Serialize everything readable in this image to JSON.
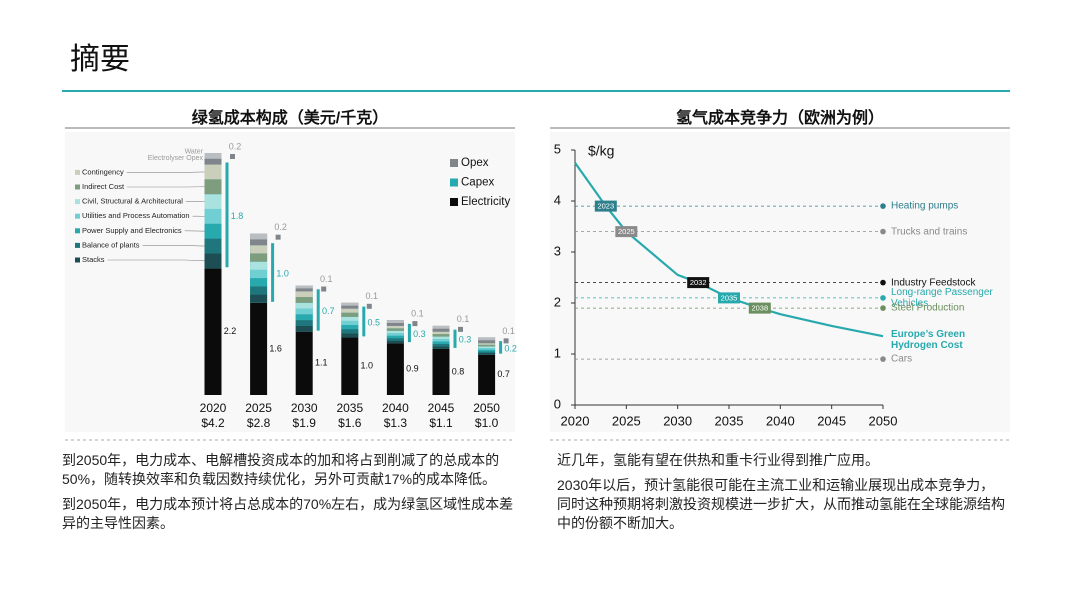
{
  "title": "摘要",
  "chart_data": [
    {
      "type": "stacked-bar",
      "title": "绿氢成本构成（美元/千克）",
      "categories": [
        "2020",
        "2025",
        "2030",
        "2035",
        "2040",
        "2045",
        "2050"
      ],
      "totals": {
        "values": [
          4.2,
          2.8,
          1.9,
          1.6,
          1.3,
          1.1,
          1.0
        ],
        "value_labels": [
          "$4.2",
          "$2.8",
          "$1.9",
          "$1.6",
          "$1.3",
          "$1.1",
          "$1.0"
        ]
      },
      "legend": "upper right",
      "series": [
        {
          "name": "Electricity",
          "color": "#0b0b0b",
          "values": [
            2.2,
            1.6,
            1.1,
            1.0,
            0.9,
            0.8,
            0.7
          ],
          "value_labels": [
            "2.2",
            "1.6",
            "1.1",
            "1.0",
            "0.9",
            "0.8",
            "0.7"
          ]
        },
        {
          "name": "Capex",
          "color": "#27a9ad",
          "values": [
            1.8,
            1.0,
            0.7,
            0.5,
            0.3,
            0.3,
            0.2
          ],
          "value_labels": [
            "1.8",
            "1.0",
            "0.7",
            "0.5",
            "0.3",
            "0.3",
            "0.2"
          ],
          "components": [
            {
              "name": "Stacks",
              "color": "#1c4e54"
            },
            {
              "name": "Balance of plants",
              "color": "#1f777d"
            },
            {
              "name": "Power Supply and Electronics",
              "color": "#27a9ad"
            },
            {
              "name": "Utilities and Process Automation",
              "color": "#6fcfd2"
            },
            {
              "name": "Civil, Structural & Architectural",
              "color": "#a9e2df"
            },
            {
              "name": "Indirect Cost",
              "color": "#7e9c7e"
            },
            {
              "name": "Contingency",
              "color": "#c9cfba"
            }
          ]
        },
        {
          "name": "Opex",
          "color": "#7f858a",
          "values": [
            0.2,
            0.2,
            0.1,
            0.1,
            0.1,
            0.1,
            0.1
          ],
          "components": [
            {
              "name": "Electrolyser Opex",
              "color": "#7f858a"
            },
            {
              "name": "Water",
              "color": "#b9bec2"
            }
          ]
        }
      ]
    },
    {
      "type": "line",
      "title": "氢气成本竞争力（欧洲为例）",
      "ylabel": "$/kg",
      "x": [
        2020,
        2023,
        2025,
        2030,
        2032,
        2035,
        2038,
        2040,
        2045,
        2050
      ],
      "xlim": [
        2020,
        2050
      ],
      "xticks": [
        2020,
        2025,
        2030,
        2035,
        2040,
        2045,
        2050
      ],
      "ylim": [
        0,
        5
      ],
      "yticks": [
        0,
        1,
        2,
        3,
        4,
        5
      ],
      "series": [
        {
          "name": "Europe’s Green Hydrogen Cost",
          "color": "#27a9ad",
          "values": [
            4.75,
            3.9,
            3.4,
            2.55,
            2.4,
            2.1,
            1.9,
            1.78,
            1.55,
            1.35
          ]
        }
      ],
      "thresholds": [
        {
          "name": "Heating pumps",
          "value": 3.9,
          "color": "#2e7f8c",
          "year": 2023
        },
        {
          "name": "Trucks and trains",
          "value": 3.4,
          "color": "#8a8a8a",
          "year": 2025
        },
        {
          "name": "Industry Feedstock",
          "value": 2.4,
          "color": "#111111",
          "year": 2032
        },
        {
          "name": "Long-range Passenger Vehicles",
          "value": 2.1,
          "color": "#27a9ad",
          "year": 2035
        },
        {
          "name": "Steel Production",
          "value": 1.9,
          "color": "#6b8f5e",
          "year": 2038
        },
        {
          "name": "Cars",
          "value": 0.9,
          "color": "#8a8a8a"
        }
      ]
    }
  ],
  "captions": [
    [
      "到2050年，电力成本、电解槽投资成本的加和将占到削减了的总成本的50%，随转换效率和负载因数持续优化，另外可贡献17%的成本降低。",
      "到2050年，电力成本预计将占总成本的70%左右，成为绿氢区域性成本差异的主导性因素。"
    ],
    [
      "近几年，氢能有望在供热和重卡行业得到推广应用。",
      "2030年以后，预计氢能很可能在主流工业和运输业展现出成本竞争力，同时这种预期将刺激投资规模进一步扩大，从而推动氢能在全球能源结构中的份额不断加大。"
    ]
  ]
}
